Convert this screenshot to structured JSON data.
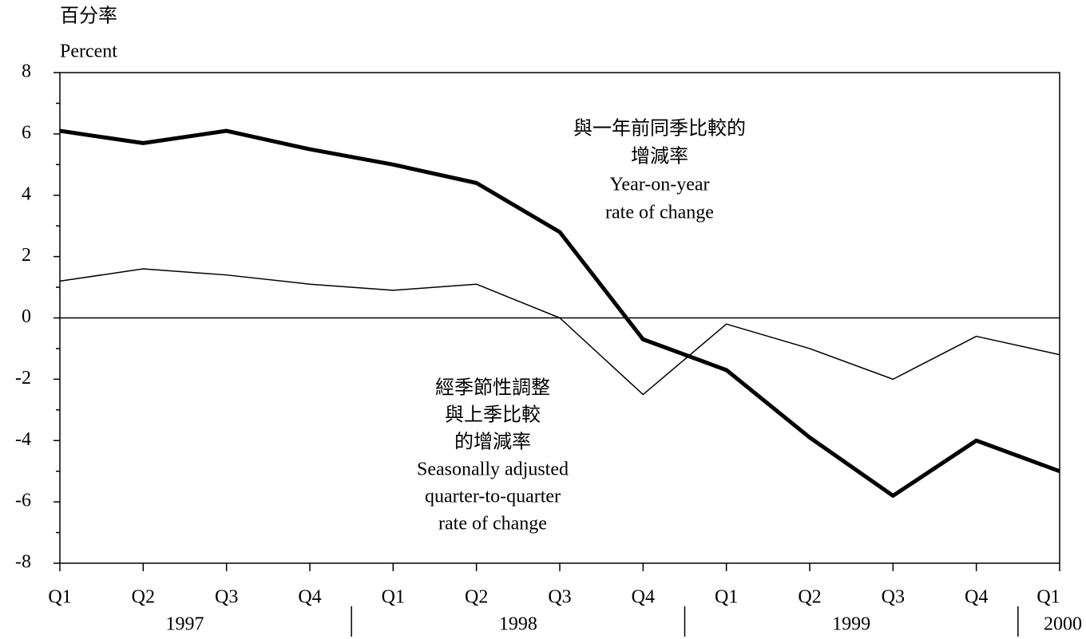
{
  "chart_data": {
    "type": "line",
    "y_label_lines": [
      "百分率",
      "Percent"
    ],
    "categories": [
      "Q1",
      "Q2",
      "Q3",
      "Q4",
      "Q1",
      "Q2",
      "Q3",
      "Q4",
      "Q1",
      "Q2",
      "Q3",
      "Q4",
      "Q1"
    ],
    "years": [
      "1997",
      "1998",
      "1999",
      "2000"
    ],
    "series": [
      {
        "name": "Year-on-year rate of change",
        "color": "#000000",
        "values": [
          6.1,
          5.7,
          6.1,
          5.5,
          5.0,
          4.4,
          2.8,
          -0.7,
          -1.7,
          -3.9,
          -5.8,
          -4.0,
          -5.0
        ]
      },
      {
        "name": "Seasonally adjusted quarter-to-quarter rate of change",
        "color": "#000000",
        "values": [
          1.2,
          1.6,
          1.4,
          1.1,
          0.9,
          1.1,
          0.0,
          -2.5,
          -0.2,
          -1.0,
          -2.0,
          -0.6,
          -1.2
        ]
      }
    ],
    "annotations": [
      {
        "lines": [
          "與一年前同季比較的",
          "增減率",
          "Year-on-year",
          "rate of change"
        ]
      },
      {
        "lines": [
          "經季節性調整",
          "與上季比較",
          "的增減率",
          "Seasonally adjusted",
          "quarter-to-quarter",
          "rate of change"
        ]
      }
    ],
    "ylim": [
      -8,
      8
    ],
    "yticks": [
      -8,
      -6,
      -4,
      -2,
      0,
      2,
      4,
      6,
      8
    ],
    "minor_yticks": [
      -7,
      -5,
      -3,
      -1,
      1,
      3,
      5,
      7
    ],
    "zero_line": true
  }
}
